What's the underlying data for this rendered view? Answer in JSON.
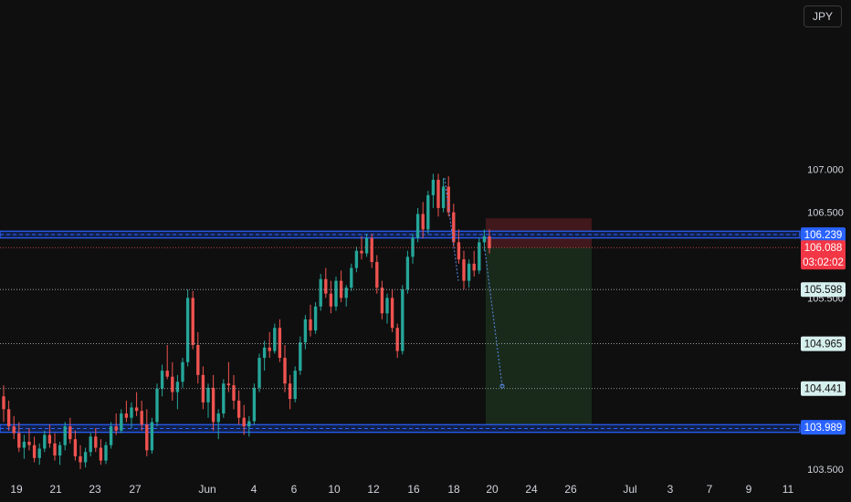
{
  "currency_button": "JPY",
  "colors": {
    "background": "#0f0f0f",
    "up": "#26a69a",
    "down": "#ef5350",
    "support_resistance": "#2962ff",
    "risk_zone": "#4a1a1e",
    "reward_zone": "#1b2e1d",
    "axis_text": "#d1d4dc"
  },
  "chart_data": {
    "type": "candlestick",
    "instrument": "JPY",
    "y_axis_ticks": [
      "107.000",
      "106.500",
      "105.500",
      "103.500"
    ],
    "x_axis_ticks": [
      "19",
      "21",
      "23",
      "27",
      "Jun",
      "4",
      "6",
      "10",
      "12",
      "16",
      "18",
      "20",
      "24",
      "26",
      "Jul",
      "3",
      "7",
      "9",
      "11"
    ],
    "ylim": [
      103.45,
      107.12
    ],
    "price_labels": [
      {
        "value": 106.239,
        "text": "106.239",
        "style": "blue"
      },
      {
        "value": 106.088,
        "text": "106.088",
        "sub": "03:02:02",
        "style": "red"
      },
      {
        "value": 105.598,
        "text": "105.598",
        "style": "light"
      },
      {
        "value": 104.965,
        "text": "104.965",
        "style": "light"
      },
      {
        "value": 104.441,
        "text": "104.441",
        "style": "light"
      },
      {
        "value": 103.989,
        "text": "103.989",
        "style": "blue"
      }
    ],
    "horizontal_zones": [
      {
        "from": 106.2,
        "to": 106.28,
        "kind": "resistance"
      },
      {
        "from": 103.93,
        "to": 104.02,
        "kind": "support"
      }
    ],
    "position": {
      "entry": 106.088,
      "stop": 106.43,
      "target": 104.01,
      "x_start": "20",
      "x_end": "26"
    },
    "projection": {
      "from": 106.06,
      "to": 104.47
    },
    "candles": [
      [
        104.35,
        104.48,
        104.05,
        104.2
      ],
      [
        104.2,
        104.3,
        103.95,
        104.0
      ],
      [
        104.0,
        104.12,
        103.85,
        103.92
      ],
      [
        103.92,
        104.05,
        103.7,
        103.75
      ],
      [
        103.75,
        103.9,
        103.62,
        103.82
      ],
      [
        103.82,
        103.98,
        103.72,
        103.78
      ],
      [
        103.78,
        103.88,
        103.58,
        103.63
      ],
      [
        103.63,
        103.8,
        103.55,
        103.74
      ],
      [
        103.74,
        103.95,
        103.7,
        103.9
      ],
      [
        103.9,
        104.02,
        103.75,
        103.8
      ],
      [
        103.8,
        103.92,
        103.6,
        103.66
      ],
      [
        103.66,
        103.82,
        103.55,
        103.78
      ],
      [
        103.78,
        104.05,
        103.72,
        104.0
      ],
      [
        104.0,
        104.1,
        103.8,
        103.85
      ],
      [
        103.85,
        103.95,
        103.6,
        103.65
      ],
      [
        103.65,
        103.78,
        103.5,
        103.58
      ],
      [
        103.58,
        103.75,
        103.52,
        103.7
      ],
      [
        103.7,
        103.92,
        103.65,
        103.88
      ],
      [
        103.88,
        103.98,
        103.7,
        103.75
      ],
      [
        103.75,
        103.85,
        103.55,
        103.6
      ],
      [
        103.6,
        103.82,
        103.56,
        103.78
      ],
      [
        103.78,
        104.05,
        103.74,
        104.0
      ],
      [
        104.0,
        104.15,
        103.9,
        103.95
      ],
      [
        103.95,
        104.2,
        103.92,
        104.15
      ],
      [
        104.15,
        104.3,
        104.05,
        104.1
      ],
      [
        104.1,
        104.28,
        103.98,
        104.22
      ],
      [
        104.22,
        104.4,
        104.12,
        104.18
      ],
      [
        104.18,
        104.3,
        103.95,
        104.02
      ],
      [
        104.02,
        104.2,
        103.65,
        103.72
      ],
      [
        103.72,
        104.1,
        103.68,
        104.05
      ],
      [
        104.05,
        104.5,
        104.0,
        104.44
      ],
      [
        104.44,
        104.72,
        104.35,
        104.65
      ],
      [
        104.65,
        104.95,
        104.55,
        104.58
      ],
      [
        104.58,
        104.75,
        104.3,
        104.4
      ],
      [
        104.4,
        104.6,
        104.2,
        104.52
      ],
      [
        104.52,
        104.8,
        104.45,
        104.75
      ],
      [
        104.75,
        105.6,
        104.7,
        105.5
      ],
      [
        105.5,
        105.58,
        104.9,
        104.95
      ],
      [
        104.95,
        105.1,
        104.5,
        104.6
      ],
      [
        104.6,
        104.7,
        104.2,
        104.28
      ],
      [
        104.28,
        104.5,
        104.1,
        104.45
      ],
      [
        104.45,
        104.6,
        103.95,
        104.05
      ],
      [
        104.05,
        104.2,
        103.85,
        104.15
      ],
      [
        104.15,
        104.55,
        104.1,
        104.5
      ],
      [
        104.5,
        104.75,
        104.4,
        104.48
      ],
      [
        104.48,
        104.6,
        104.2,
        104.3
      ],
      [
        104.3,
        104.42,
        104.02,
        104.1
      ],
      [
        104.1,
        104.25,
        103.9,
        104.0
      ],
      [
        104.0,
        104.12,
        103.88,
        104.06
      ],
      [
        104.06,
        104.5,
        104.02,
        104.45
      ],
      [
        104.45,
        104.85,
        104.4,
        104.8
      ],
      [
        104.8,
        105.0,
        104.65,
        104.92
      ],
      [
        104.92,
        105.1,
        104.8,
        104.88
      ],
      [
        104.88,
        105.2,
        104.85,
        105.15
      ],
      [
        105.15,
        105.25,
        104.75,
        104.8
      ],
      [
        104.8,
        104.95,
        104.4,
        104.5
      ],
      [
        104.5,
        104.6,
        104.2,
        104.32
      ],
      [
        104.32,
        104.7,
        104.28,
        104.65
      ],
      [
        104.65,
        105.05,
        104.6,
        104.98
      ],
      [
        104.98,
        105.3,
        104.9,
        105.25
      ],
      [
        105.25,
        105.42,
        105.05,
        105.12
      ],
      [
        105.12,
        105.45,
        105.08,
        105.4
      ],
      [
        105.4,
        105.78,
        105.35,
        105.72
      ],
      [
        105.72,
        105.85,
        105.5,
        105.55
      ],
      [
        105.55,
        105.7,
        105.32,
        105.4
      ],
      [
        105.4,
        105.75,
        105.35,
        105.7
      ],
      [
        105.7,
        105.82,
        105.45,
        105.5
      ],
      [
        105.5,
        105.65,
        105.4,
        105.62
      ],
      [
        105.62,
        105.9,
        105.58,
        105.85
      ],
      [
        105.85,
        106.1,
        105.8,
        106.05
      ],
      [
        106.05,
        106.22,
        105.95,
        106.02
      ],
      [
        106.02,
        106.25,
        105.98,
        106.2
      ],
      [
        106.2,
        106.25,
        105.85,
        105.92
      ],
      [
        105.92,
        106.0,
        105.55,
        105.62
      ],
      [
        105.62,
        105.7,
        105.25,
        105.32
      ],
      [
        105.32,
        105.55,
        105.2,
        105.5
      ],
      [
        105.5,
        105.6,
        105.1,
        105.15
      ],
      [
        105.15,
        105.2,
        104.8,
        104.88
      ],
      [
        104.88,
        105.65,
        104.84,
        105.6
      ],
      [
        105.6,
        106.05,
        105.55,
        105.98
      ],
      [
        105.98,
        106.25,
        105.9,
        106.2
      ],
      [
        106.2,
        106.55,
        106.15,
        106.48
      ],
      [
        106.48,
        106.62,
        106.2,
        106.3
      ],
      [
        106.3,
        106.75,
        106.25,
        106.7
      ],
      [
        106.7,
        106.95,
        106.55,
        106.88
      ],
      [
        106.88,
        106.95,
        106.45,
        106.55
      ],
      [
        106.55,
        106.9,
        106.5,
        106.8
      ],
      [
        106.8,
        106.92,
        106.45,
        106.5
      ],
      [
        106.5,
        106.6,
        106.1,
        106.15
      ],
      [
        106.15,
        106.3,
        105.9,
        105.95
      ],
      [
        105.95,
        106.05,
        105.6,
        105.7
      ],
      [
        105.7,
        105.95,
        105.62,
        105.9
      ],
      [
        105.9,
        106.05,
        105.75,
        105.82
      ],
      [
        105.82,
        106.2,
        105.78,
        106.15
      ],
      [
        106.15,
        106.3,
        106.05,
        106.22
      ],
      [
        106.22,
        106.3,
        106.02,
        106.08
      ]
    ]
  }
}
